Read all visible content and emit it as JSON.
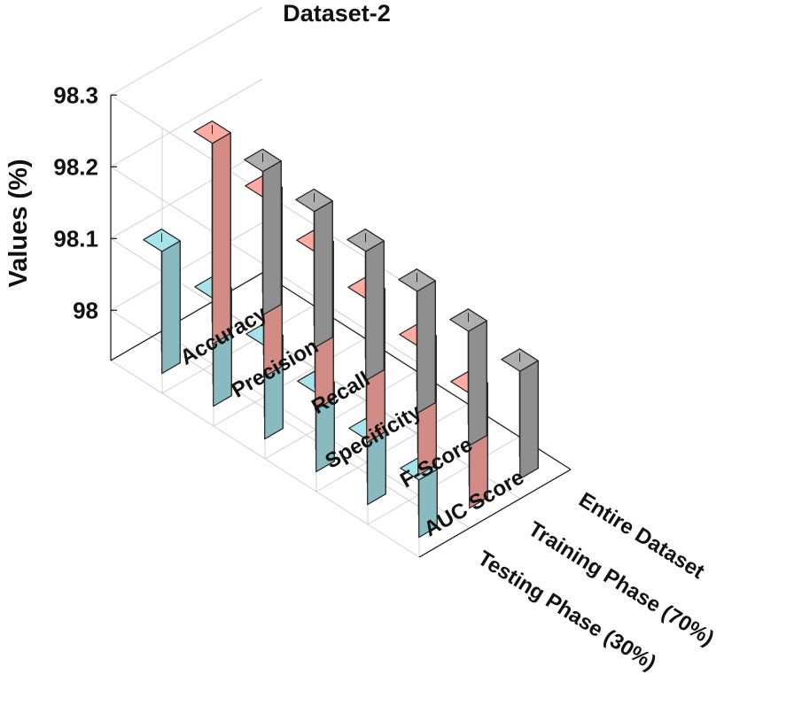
{
  "chart_data": {
    "type": "bar3d",
    "title": "Dataset-2",
    "zlabel": "Values (%)",
    "zlim": [
      97.93,
      98.3
    ],
    "zticks": [
      "98",
      "98.1",
      "98.2",
      "98.3"
    ],
    "ztick_values": [
      98.0,
      98.1,
      98.2,
      98.3
    ],
    "categories": [
      "Accuracy",
      "Precision",
      "Recall",
      "Specificity",
      "F-Score",
      "AUC Score"
    ],
    "series": [
      {
        "name": "Entire Dataset",
        "color": "#a6a6a6",
        "values": [
          98.13,
          98.12,
          98.11,
          98.1,
          98.09,
          98.08
        ]
      },
      {
        "name": "Training Phase (70%)",
        "color": "#f4a39b",
        "values": [
          98.21,
          98.18,
          98.15,
          98.13,
          98.11,
          98.09
        ]
      },
      {
        "name": "Testing Phase (30%)",
        "color": "#9fd8df",
        "values": [
          98.1,
          98.08,
          98.06,
          98.04,
          98.02,
          98.01
        ]
      }
    ],
    "grid": true
  }
}
